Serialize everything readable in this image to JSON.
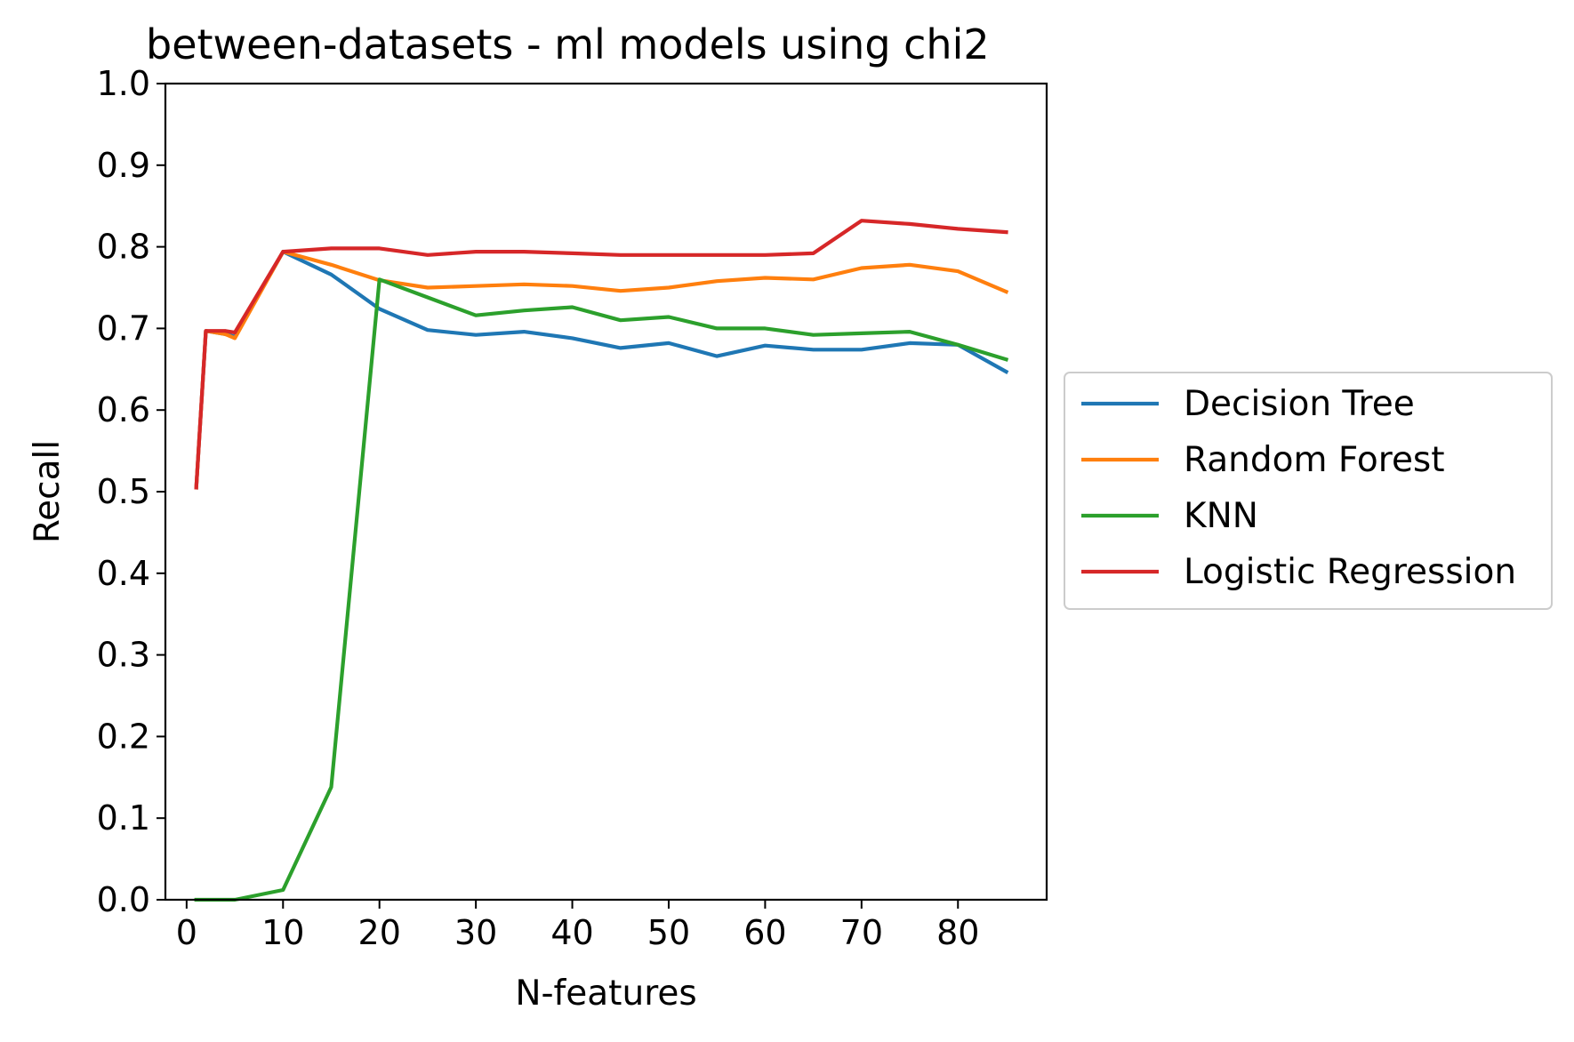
{
  "chart_data": {
    "type": "line",
    "title": "between-datasets - ml models using chi2",
    "xlabel": "N-features",
    "ylabel": "Recall",
    "xlim": [
      -2.2,
      89.2
    ],
    "ylim": [
      0.0,
      1.0
    ],
    "xticks": [
      0,
      10,
      20,
      30,
      40,
      50,
      60,
      70,
      80
    ],
    "xtick_labels": [
      "0",
      "10",
      "20",
      "30",
      "40",
      "50",
      "60",
      "70",
      "80"
    ],
    "yticks": [
      0.0,
      0.1,
      0.2,
      0.3,
      0.4,
      0.5,
      0.6,
      0.7,
      0.8,
      0.9,
      1.0
    ],
    "ytick_labels": [
      "0.0",
      "0.1",
      "0.2",
      "0.3",
      "0.4",
      "0.5",
      "0.6",
      "0.7",
      "0.8",
      "0.9",
      "1.0"
    ],
    "grid": false,
    "legend_position": "outside-right",
    "x": [
      1,
      2,
      4,
      5,
      10,
      15,
      20,
      25,
      30,
      35,
      40,
      45,
      50,
      55,
      60,
      65,
      70,
      75,
      80,
      85
    ],
    "series": [
      {
        "name": "Decision Tree",
        "color": "#1f77b4",
        "values": [
          0.505,
          0.697,
          0.693,
          0.69,
          0.794,
          0.766,
          0.724,
          0.698,
          0.692,
          0.696,
          0.688,
          0.676,
          0.682,
          0.666,
          0.679,
          0.674,
          0.674,
          0.682,
          0.68,
          0.647
        ]
      },
      {
        "name": "Random Forest",
        "color": "#ff7f0e",
        "values": [
          0.505,
          0.697,
          0.693,
          0.688,
          0.794,
          0.778,
          0.759,
          0.75,
          0.752,
          0.754,
          0.752,
          0.746,
          0.75,
          0.758,
          0.762,
          0.76,
          0.774,
          0.778,
          0.77,
          0.745
        ]
      },
      {
        "name": "KNN",
        "color": "#2ca02c",
        "values": [
          0.0,
          0.0,
          0.0,
          0.0,
          0.012,
          0.138,
          0.76,
          0.738,
          0.716,
          0.722,
          0.726,
          0.71,
          0.714,
          0.7,
          0.7,
          0.692,
          0.694,
          0.696,
          0.68,
          0.662
        ]
      },
      {
        "name": "Logistic Regression",
        "color": "#d62728",
        "values": [
          0.505,
          0.697,
          0.697,
          0.695,
          0.794,
          0.798,
          0.798,
          0.79,
          0.794,
          0.794,
          0.792,
          0.79,
          0.79,
          0.79,
          0.79,
          0.792,
          0.832,
          0.828,
          0.822,
          0.818
        ]
      }
    ]
  }
}
